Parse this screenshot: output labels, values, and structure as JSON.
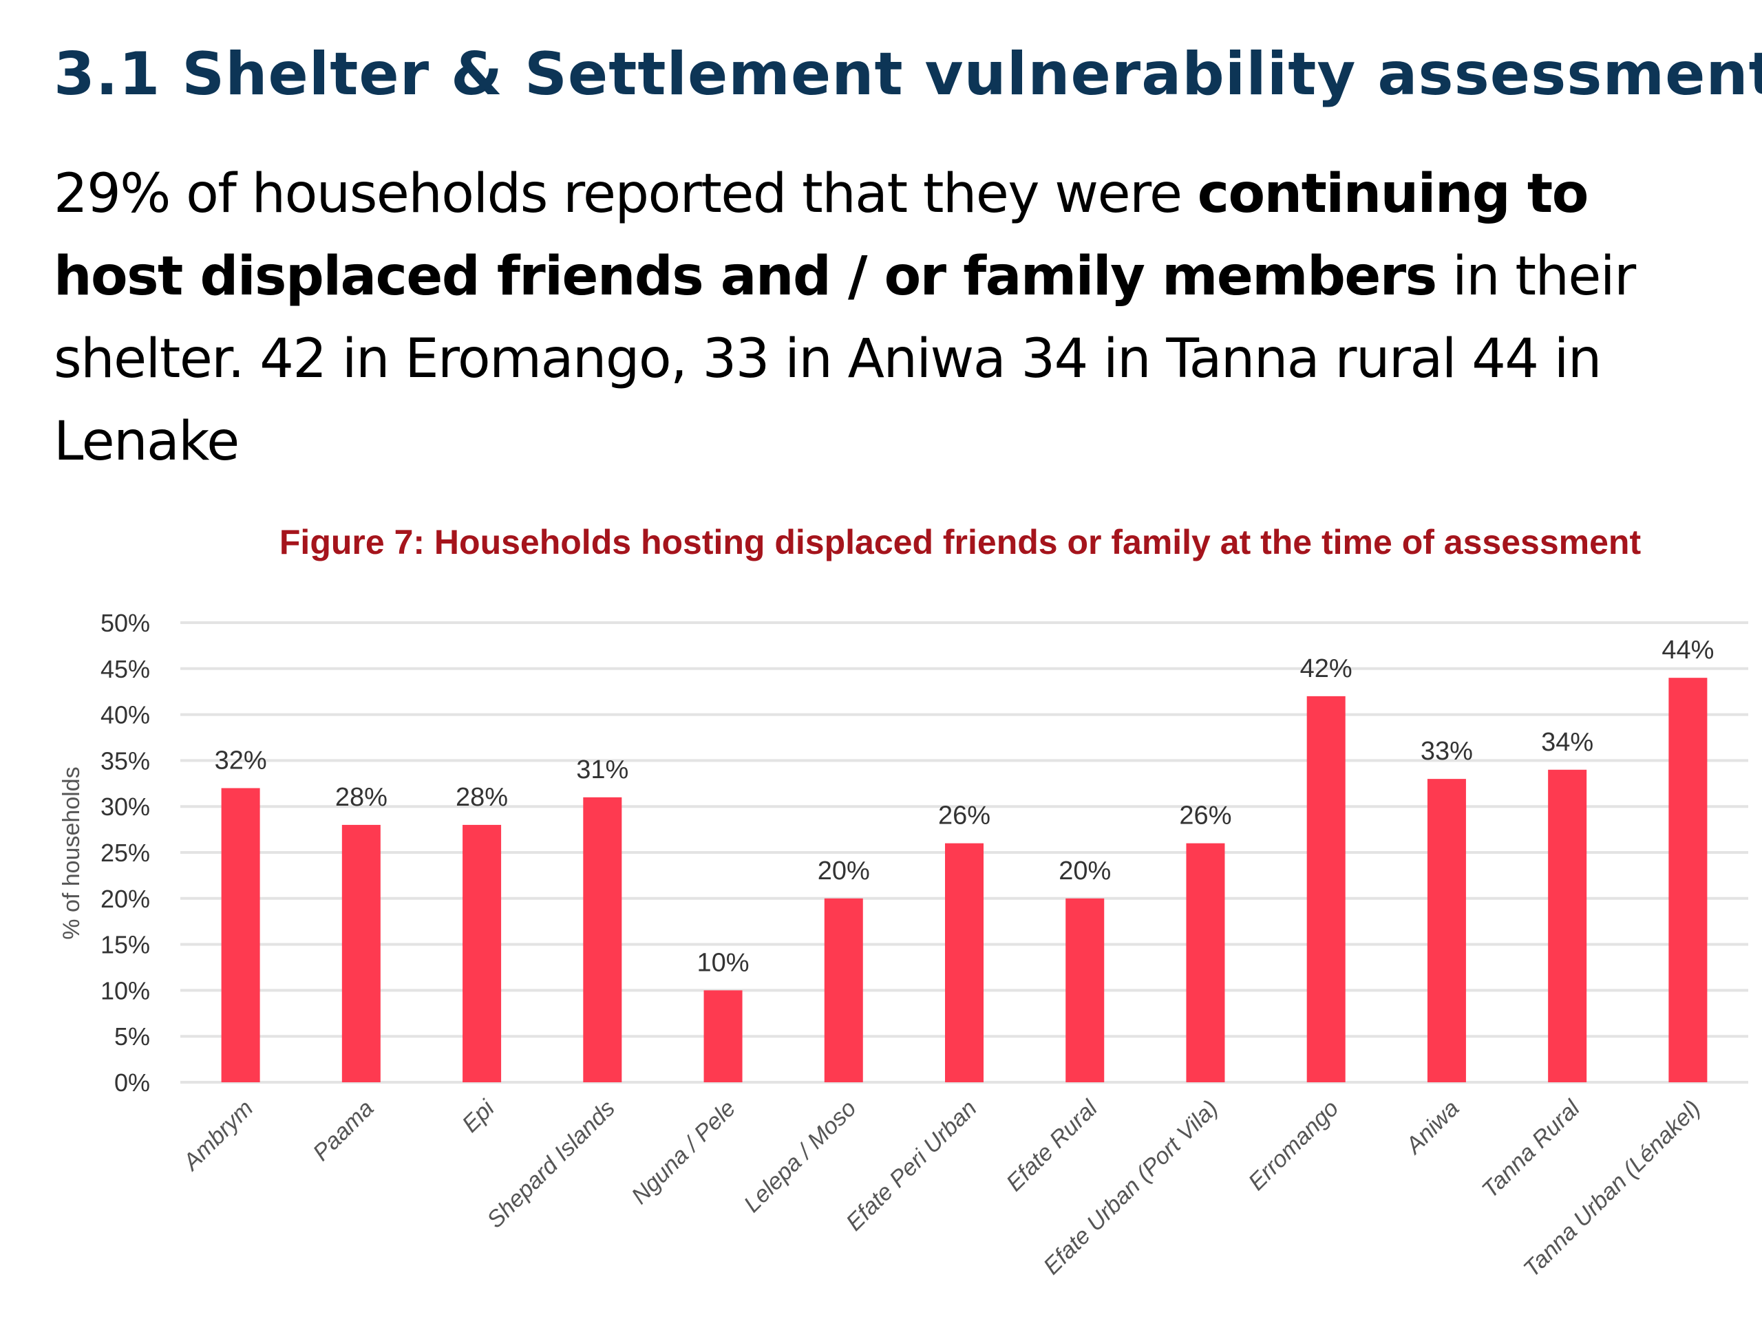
{
  "heading": "3.1 Shelter & Settlement vulnerability assessment",
  "body": {
    "part1": "29% of households reported that they were ",
    "bold": "continuing to host displaced friends and / or family members",
    "part2": " in their shelter. 42 in Eromango, 33 in Aniwa 34 in Tanna rural 44 in Lenake"
  },
  "colors": {
    "heading": "#0d3556",
    "bar": "#fe3a50",
    "figure_title": "#a5141c",
    "grid": "#e3e3e3"
  },
  "chart_data": {
    "type": "bar",
    "title": "Figure 7: Households hosting displaced friends or family at the time of assessment",
    "xlabel": "",
    "ylabel": "% of households",
    "ylim": [
      0,
      50
    ],
    "yticks": [
      0,
      5,
      10,
      15,
      20,
      25,
      30,
      35,
      40,
      45,
      50
    ],
    "ytick_labels": [
      "0%",
      "5%",
      "10%",
      "15%",
      "20%",
      "25%",
      "30%",
      "35%",
      "40%",
      "45%",
      "50%"
    ],
    "grid": true,
    "legend": "none",
    "categories": [
      "Ambrym",
      "Paama",
      "Epi",
      "Shepard Islands",
      "Nguna / Pele",
      "Lelepa / Moso",
      "Efate Peri Urban",
      "Efate Rural",
      "Efate Urban (Port Vila)",
      "Erromango",
      "Aniwa",
      "Tanna Rural",
      "Tanna Urban (Lénakel)"
    ],
    "values": [
      32,
      28,
      28,
      31,
      10,
      20,
      26,
      20,
      26,
      42,
      33,
      34,
      44
    ],
    "data_labels": [
      "32%",
      "28%",
      "28%",
      "31%",
      "10%",
      "20%",
      "26%",
      "20%",
      "26%",
      "42%",
      "33%",
      "34%",
      "44%"
    ]
  }
}
